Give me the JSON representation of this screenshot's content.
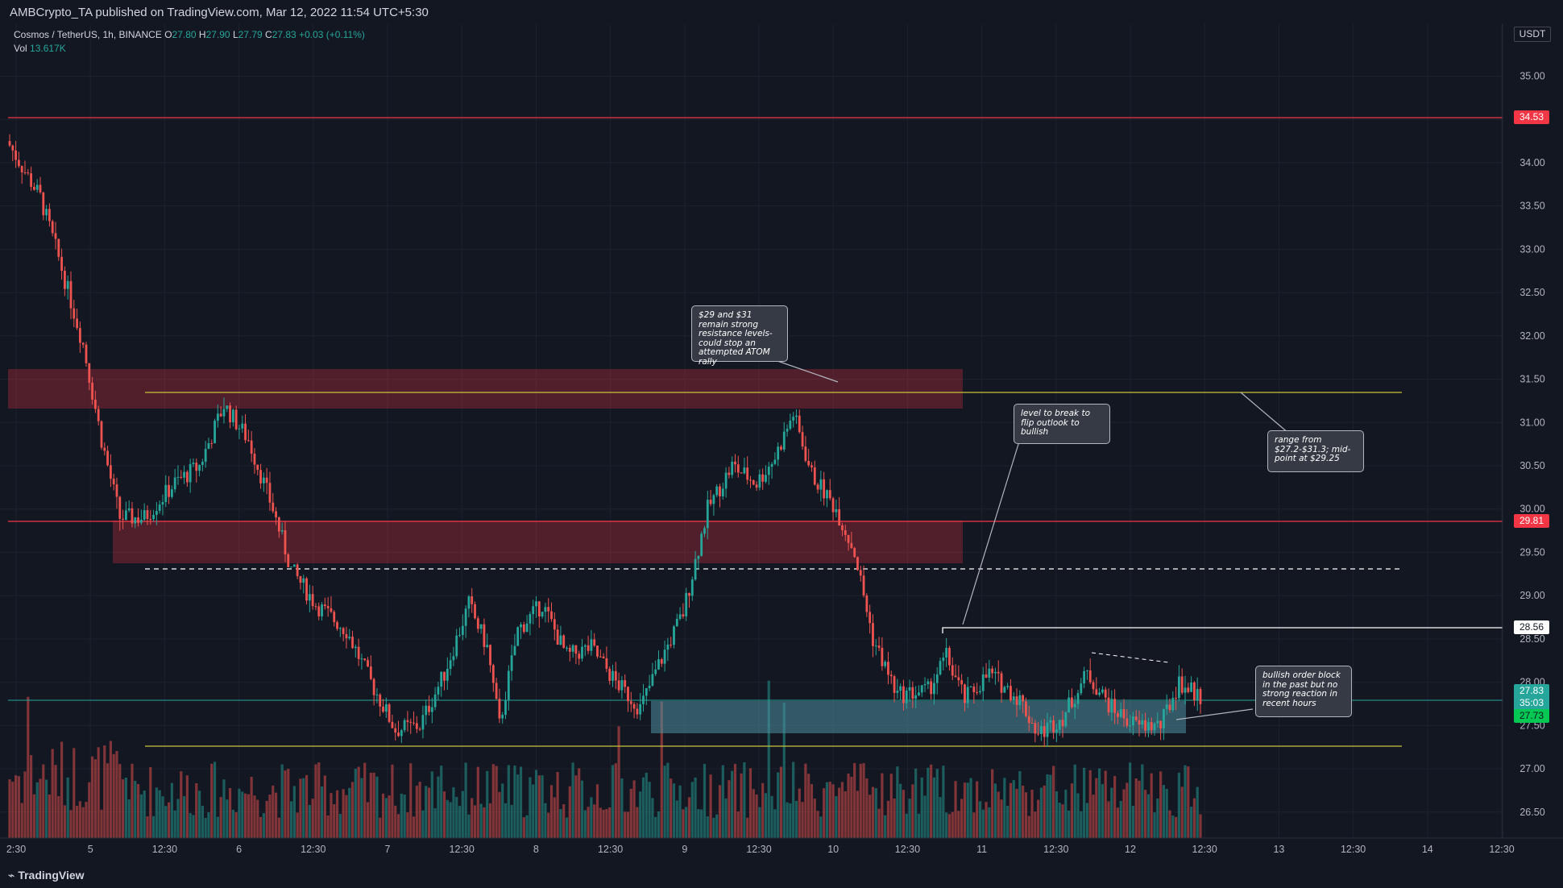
{
  "header": {
    "published": "AMBCrypto_TA published on TradingView.com, Mar 12, 2022 11:54 UTC+5:30"
  },
  "legend": {
    "symbol": "Cosmos / TetherUS, 1h, BINANCE",
    "o_label": "O",
    "o": "27.80",
    "h_label": "H",
    "h": "27.90",
    "l_label": "L",
    "l": "27.79",
    "c_label": "C",
    "c": "27.83",
    "change": "+0.03 (+0.11%)",
    "vol_label": "Vol",
    "vol": "13.617K"
  },
  "axis": {
    "currency": "USDT",
    "price_ticks": [
      "35.00",
      "34.50",
      "34.00",
      "33.50",
      "33.00",
      "32.50",
      "32.00",
      "31.50",
      "31.00",
      "30.50",
      "30.00",
      "29.50",
      "29.00",
      "28.50",
      "28.00",
      "27.50",
      "27.00",
      "26.50"
    ],
    "time_ticks": [
      "2:30",
      "5",
      "12:30",
      "6",
      "12:30",
      "7",
      "12:30",
      "8",
      "12:30",
      "9",
      "12:30",
      "10",
      "12:30",
      "11",
      "12:30",
      "12",
      "12:30",
      "13",
      "12:30",
      "14",
      "12:30"
    ]
  },
  "price_tags": {
    "resistance_high": "34.53",
    "resistance_mid": "29.81",
    "level_break": "28.56",
    "last_price": "27.83",
    "countdown": "35:03",
    "prev_close": "27.73"
  },
  "annotations": {
    "resistance_note": "$29 and $31 remain strong resistance levels- could stop an attempted ATOM rally",
    "break_note": "level to break to flip outlook to bullish",
    "range_note": "range from $27.2-$31.3; mid-point at $29.25",
    "orderblock_note": "bullish order block in the past but no strong reaction in recent hours"
  },
  "colors": {
    "background": "#131722",
    "up": "#26a69a",
    "down": "#ef5350",
    "resistance_line": "#f23645",
    "range_line": "#c9c33a",
    "order_block": "#4f8fa0"
  },
  "footer": {
    "brand": "TradingView"
  },
  "chart_data": {
    "type": "candlestick",
    "pair": "ATOM/USDT",
    "timeframe": "1h",
    "y_range": [
      26.2,
      35.6
    ],
    "horizontal_levels": [
      34.53,
      29.81,
      28.56
    ],
    "range_lines": [
      31.3,
      27.2
    ],
    "range_midpoint": 29.25,
    "zones": [
      {
        "name": "resistance",
        "from": 31.1,
        "to": 31.6
      },
      {
        "name": "resistance",
        "from": 29.33,
        "to": 29.85
      },
      {
        "name": "bullish order block",
        "from": 27.35,
        "to": 27.75
      }
    ],
    "close_path": [
      [
        0,
        34.2
      ],
      [
        10,
        33.6
      ],
      [
        16,
        32.9
      ],
      [
        24,
        31.9
      ],
      [
        30,
        30.8
      ],
      [
        36,
        29.9
      ],
      [
        44,
        29.9
      ],
      [
        54,
        30.3
      ],
      [
        62,
        30.5
      ],
      [
        70,
        31.2
      ],
      [
        78,
        30.8
      ],
      [
        86,
        30.0
      ],
      [
        92,
        29.3
      ],
      [
        100,
        28.9
      ],
      [
        110,
        28.6
      ],
      [
        118,
        28.0
      ],
      [
        126,
        27.45
      ],
      [
        134,
        27.5
      ],
      [
        142,
        28.1
      ],
      [
        150,
        28.9
      ],
      [
        156,
        28.4
      ],
      [
        160,
        27.5
      ],
      [
        166,
        28.6
      ],
      [
        174,
        28.9
      ],
      [
        182,
        28.3
      ],
      [
        190,
        28.4
      ],
      [
        198,
        28.0
      ],
      [
        206,
        27.7
      ],
      [
        212,
        28.2
      ],
      [
        220,
        28.8
      ],
      [
        228,
        30.0
      ],
      [
        236,
        30.5
      ],
      [
        244,
        30.3
      ],
      [
        250,
        30.6
      ],
      [
        256,
        31.1
      ],
      [
        262,
        30.4
      ],
      [
        270,
        30.0
      ],
      [
        276,
        29.5
      ],
      [
        282,
        28.5
      ],
      [
        290,
        27.85
      ],
      [
        300,
        27.9
      ],
      [
        306,
        28.3
      ],
      [
        312,
        27.8
      ],
      [
        320,
        28.1
      ],
      [
        330,
        27.8
      ],
      [
        336,
        27.4
      ],
      [
        344,
        27.6
      ],
      [
        352,
        28.1
      ],
      [
        360,
        27.7
      ],
      [
        368,
        27.5
      ],
      [
        376,
        27.5
      ],
      [
        382,
        28.0
      ],
      [
        389,
        27.83
      ]
    ]
  }
}
